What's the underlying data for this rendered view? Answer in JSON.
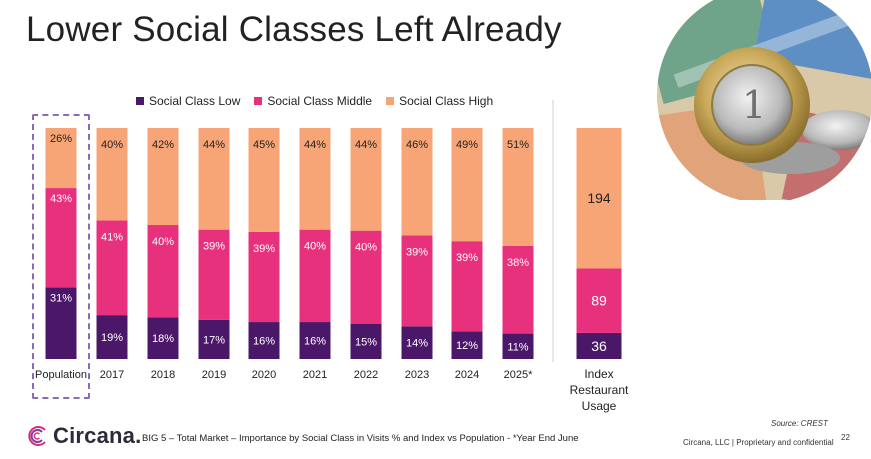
{
  "slide": {
    "title": "Lower Social Classes Left Already",
    "footnote": "BIG 5 – Total Market – Importance by Social Class in Visits % and Index vs Population - *Year End June",
    "source": "Source: CREST",
    "confidential": "Circana, LLC | Proprietary and confidential",
    "page_number": "22",
    "logo_text": "Circana."
  },
  "colors": {
    "low": "#4b1869",
    "middle": "#e8317d",
    "high": "#f7a576"
  },
  "chart_data": [
    {
      "type": "bar",
      "stacked": true,
      "percent_stacked": true,
      "title": "",
      "categories": [
        "Population",
        "2017",
        "2018",
        "2019",
        "2020",
        "2021",
        "2022",
        "2023",
        "2024",
        "2025*"
      ],
      "series": [
        {
          "name": "Social Class Low",
          "values": [
            31,
            19,
            18,
            17,
            16,
            16,
            15,
            14,
            12,
            11
          ]
        },
        {
          "name": "Social Class Middle",
          "values": [
            43,
            41,
            40,
            39,
            39,
            40,
            40,
            39,
            39,
            38
          ]
        },
        {
          "name": "Social Class High",
          "values": [
            26,
            40,
            42,
            44,
            45,
            44,
            44,
            46,
            49,
            51
          ]
        }
      ],
      "value_suffix": "%",
      "legend_position": "top",
      "highlighted_category": "Population",
      "ylim": [
        0,
        100
      ]
    },
    {
      "type": "bar",
      "stacked": true,
      "categories": [
        "Index Restaurant Usage"
      ],
      "category_label_lines": [
        "Index",
        "Restaurant",
        "Usage"
      ],
      "series": [
        {
          "name": "Social Class Low",
          "values": [
            36
          ]
        },
        {
          "name": "Social Class Middle",
          "values": [
            89
          ]
        },
        {
          "name": "Social Class High",
          "values": [
            194
          ]
        }
      ]
    }
  ]
}
